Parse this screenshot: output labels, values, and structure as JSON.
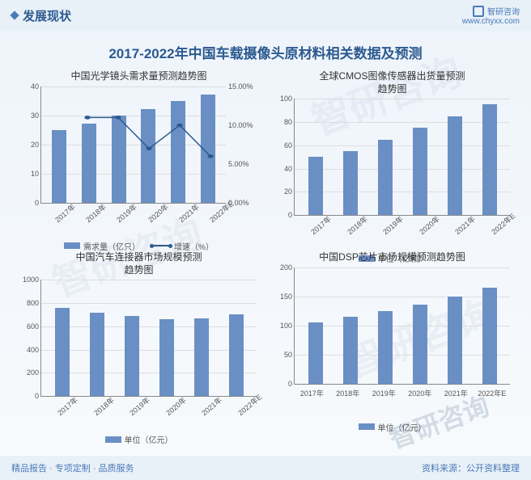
{
  "header": {
    "title": "发展现状",
    "brand": "智研咨询",
    "url": "www.chyxx.com"
  },
  "main_title": "2017-2022年中国车载摄像头原材料相关数据及预测",
  "categories": [
    "2017年",
    "2018年",
    "2019年",
    "2020年",
    "2021年",
    "2022年E"
  ],
  "colors": {
    "bar": "#6a8fc4",
    "line": "#2c5a8f",
    "grid": "#dddddd",
    "axis": "#888888",
    "title": "#2c5a8f",
    "bg_top": "#eef4fb"
  },
  "chart1": {
    "title": "中国光学镜头需求量预测趋势图",
    "type": "bar+line",
    "bars": [
      25,
      27,
      30,
      32,
      35,
      37
    ],
    "line": [
      null,
      11,
      11,
      7,
      10,
      6
    ],
    "y_left": {
      "min": 0,
      "max": 40,
      "step": 10
    },
    "y_right": {
      "min": 0,
      "max": 15,
      "step": 5,
      "fmt": "%"
    },
    "legend": [
      {
        "type": "bar",
        "label": "需求量（亿只）"
      },
      {
        "type": "line",
        "label": "增速（%）"
      }
    ],
    "label_fontsize": 9
  },
  "chart2": {
    "title": "全球CMOS图像传感器出货量预测\n趋势图",
    "type": "bar",
    "bars": [
      50,
      55,
      65,
      75,
      85,
      95
    ],
    "y": {
      "min": 0,
      "max": 100,
      "step": 20
    },
    "legend": [
      {
        "type": "bar",
        "label": "单位（亿颗）"
      }
    ],
    "label_fontsize": 9
  },
  "chart3": {
    "title": "中国汽车连接器市场规模预测\n趋势图",
    "type": "bar",
    "bars": [
      760,
      720,
      690,
      660,
      670,
      700
    ],
    "y": {
      "min": 0,
      "max": 1000,
      "step": 200
    },
    "legend": [
      {
        "type": "bar",
        "label": "单位（亿元）"
      }
    ],
    "label_fontsize": 9
  },
  "chart4": {
    "title": "中国DSP芯片市场规模预测趋势图",
    "type": "bar",
    "bars": [
      105,
      115,
      125,
      135,
      150,
      165
    ],
    "y": {
      "min": 0,
      "max": 200,
      "step": 50
    },
    "legend": [
      {
        "type": "bar",
        "label": "单位（亿元）"
      }
    ],
    "xlabel_flat": true,
    "label_fontsize": 9
  },
  "footer": {
    "left": "精品报告 · 专项定制 · 品质服务",
    "right": "资料来源：公开资料整理"
  },
  "watermark": "智研咨询"
}
